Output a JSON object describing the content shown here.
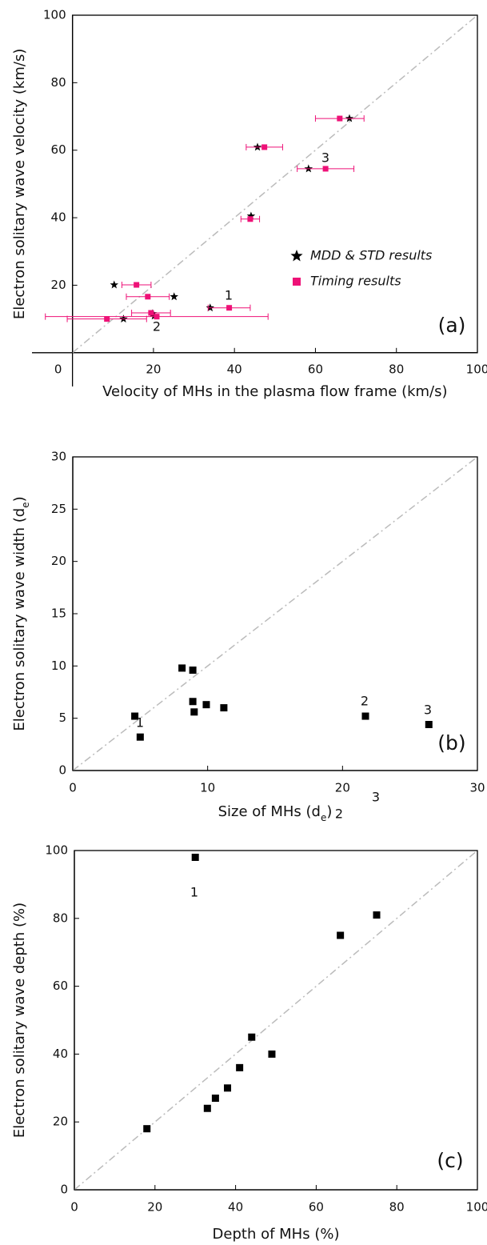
{
  "chart_data": [
    {
      "type": "scatter",
      "panel_label": "(a)",
      "x_label": "Velocity of MHs in the plasma flow frame (km/s)",
      "y_label": "Electron solitary wave velocity (km/s)",
      "xlim": [
        -10,
        100
      ],
      "ylim": [
        -10,
        100
      ],
      "xticks": [
        0,
        20,
        40,
        60,
        80,
        100
      ],
      "yticks": [
        20,
        40,
        60,
        80,
        100
      ],
      "legend": "center right",
      "series": [
        {
          "name": "MDD & STD results",
          "color": "#000000",
          "marker": "star",
          "x": [
            68.4,
            45.7,
            58.3,
            44.1,
            10.3,
            25.1,
            34.0,
            19.8,
            20.2,
            12.6
          ],
          "values": [
            69.4,
            60.9,
            54.5,
            40.5,
            20.1,
            16.6,
            13.3,
            11.6,
            10.9,
            10.0
          ]
        },
        {
          "name": "Timing results",
          "color": "#ee1177",
          "marker": "square",
          "x": [
            66.0,
            47.4,
            62.5,
            43.9,
            15.8,
            18.6,
            38.7,
            19.4,
            20.8,
            8.5
          ],
          "xerr": [
            6.0,
            4.5,
            7.0,
            2.3,
            3.6,
            5.3,
            5.2,
            4.8,
            27.5,
            9.8
          ],
          "values": [
            69.4,
            60.9,
            54.5,
            39.6,
            20.1,
            16.6,
            13.3,
            11.8,
            10.7,
            10.0
          ]
        }
      ],
      "annotations": [
        "1",
        "2",
        "3"
      ]
    },
    {
      "type": "scatter",
      "panel_label": "(b)",
      "x_label": [
        "Size of MHs (d",
        "e",
        ")"
      ],
      "y_label": [
        "Electron solitary wave width (d",
        "e",
        ")"
      ],
      "xlim": [
        0,
        30
      ],
      "ylim": [
        0,
        30
      ],
      "xticks": [
        0,
        10,
        20,
        30
      ],
      "yticks": [
        0,
        5,
        10,
        15,
        20,
        25,
        30
      ],
      "series": [
        {
          "color": "#000000",
          "marker": "square",
          "x": [
            8.1,
            8.9,
            8.9,
            9.0,
            9.9,
            11.2,
            4.6,
            5.0,
            21.7,
            26.4
          ],
          "values": [
            9.8,
            9.6,
            6.6,
            5.6,
            6.3,
            6.0,
            5.2,
            3.2,
            5.2,
            4.4
          ]
        }
      ],
      "annotations": [
        "1",
        "2",
        "3"
      ]
    },
    {
      "type": "scatter",
      "panel_label": "(c)",
      "x_label": "Depth of MHs (%)",
      "y_label": "Electron solitary wave depth (%)",
      "xlim": [
        0,
        100
      ],
      "ylim": [
        0,
        100
      ],
      "xticks": [
        0,
        20,
        40,
        60,
        80,
        100
      ],
      "yticks": [
        0,
        20,
        40,
        60,
        80,
        100
      ],
      "series": [
        {
          "color": "#000000",
          "marker": "square",
          "x": [
            30,
            66,
            75,
            18,
            33,
            35,
            38,
            41,
            44,
            49
          ],
          "values": [
            98,
            75,
            81,
            18,
            24,
            27,
            30,
            36,
            45,
            40
          ]
        }
      ],
      "annotations": [
        "1",
        "2",
        "3"
      ]
    }
  ]
}
